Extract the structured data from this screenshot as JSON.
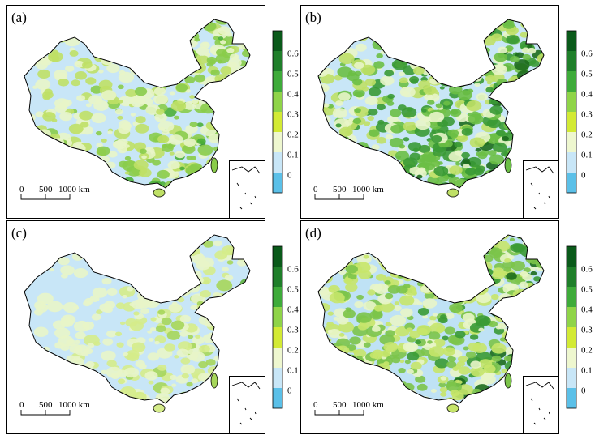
{
  "panels": [
    {
      "label": "(a)",
      "palette": [
        "#c8e6f7",
        "#e8f5c8",
        "#bfe066",
        "#8acc4a",
        "#4caf3a",
        "#2f8f2f"
      ],
      "weights": [
        0.42,
        0.16,
        0.14,
        0.15,
        0.09,
        0.04
      ]
    },
    {
      "label": "(b)",
      "palette": [
        "#c8e6f7",
        "#e8f5c8",
        "#bfe066",
        "#6bbf45",
        "#3a9a35",
        "#1d6b1d"
      ],
      "weights": [
        0.3,
        0.12,
        0.1,
        0.16,
        0.18,
        0.14
      ]
    },
    {
      "label": "(c)",
      "palette": [
        "#c8e6f7",
        "#e8f5c8",
        "#d5ec8a",
        "#a6d65a",
        "#5fb040",
        "#2f8f2f"
      ],
      "weights": [
        0.58,
        0.16,
        0.11,
        0.08,
        0.05,
        0.02
      ]
    },
    {
      "label": "(d)",
      "palette": [
        "#bfe2f5",
        "#e8f5c8",
        "#c6e56a",
        "#7cc44a",
        "#3a9a35",
        "#1d6b1d"
      ],
      "weights": [
        0.38,
        0.1,
        0.14,
        0.16,
        0.12,
        0.1
      ]
    }
  ],
  "colorbar": {
    "colors": [
      "#5bc0e8",
      "#c8e6f7",
      "#eef7cf",
      "#d3ea34",
      "#8fd448",
      "#3eab3a",
      "#1f7f2a",
      "#0a5a1a"
    ],
    "ticks": [
      "0",
      "0.1",
      "0.2",
      "0.3",
      "0.4",
      "0.5",
      "0.6"
    ]
  },
  "scalebar": {
    "labels": [
      "0",
      "500",
      "1000 km"
    ]
  }
}
